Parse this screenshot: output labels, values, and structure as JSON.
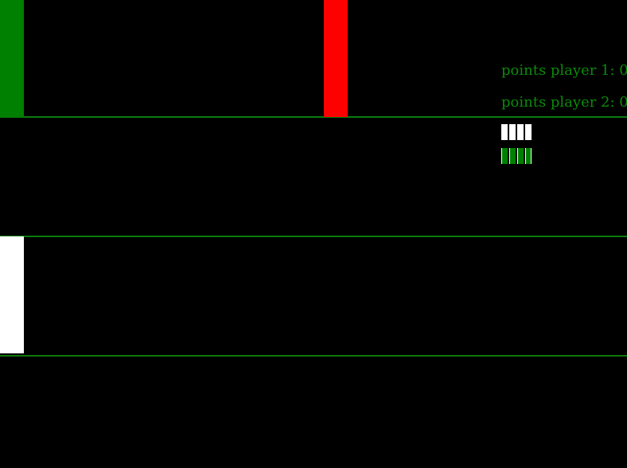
{
  "colors": {
    "background": "#000000",
    "lane_line": "#0b7a0b",
    "score_text": "#0b8a0b",
    "player1_block": "#008000",
    "enemy_block": "#ff0000",
    "player2_block": "#ffffff"
  },
  "scoreboard": {
    "player1_label": "points player 1: 0",
    "player2_label": "points player 2: 0"
  },
  "lives": {
    "player1_remaining": 4,
    "player2_remaining": 4
  }
}
